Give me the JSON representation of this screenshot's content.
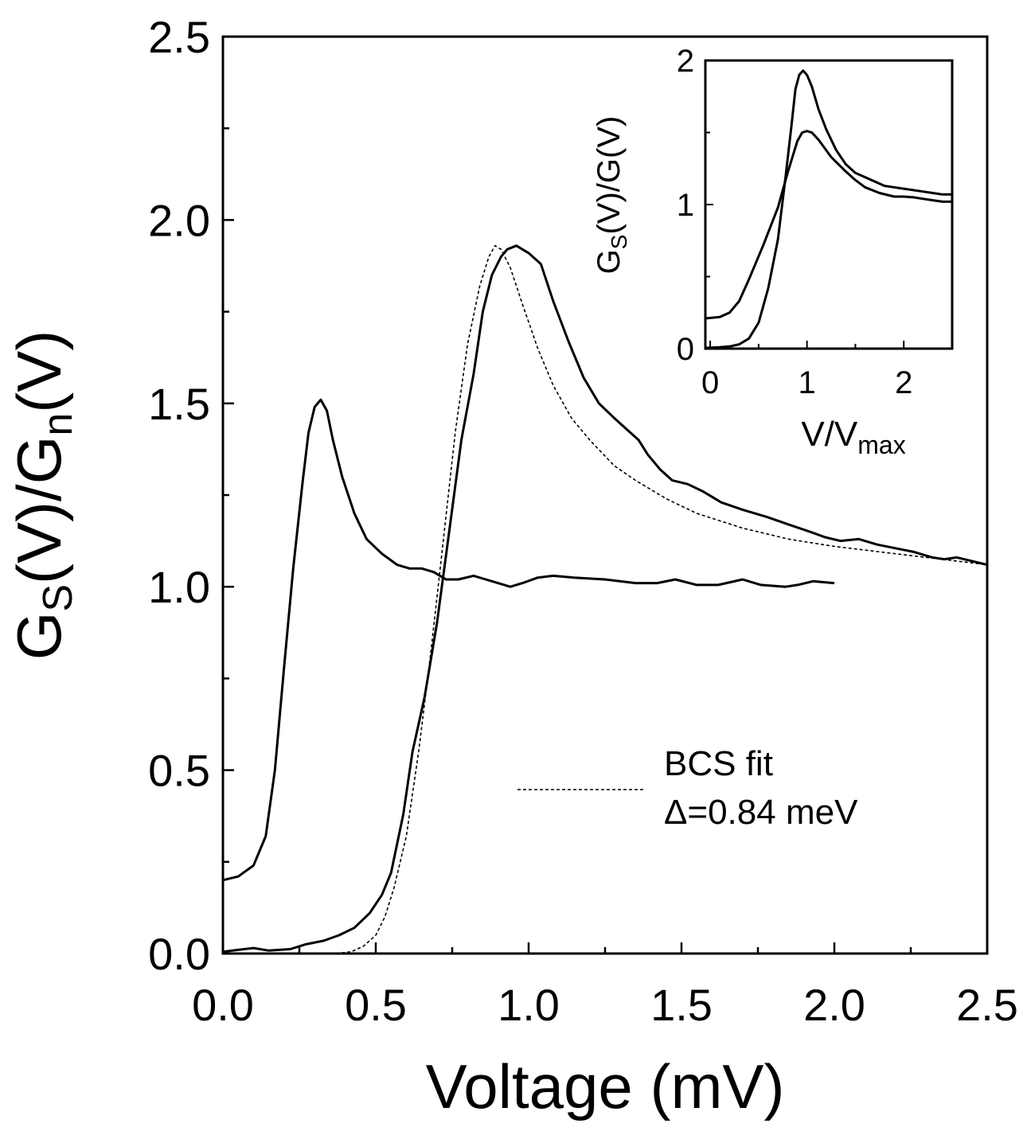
{
  "chart_data": [
    {
      "type": "line",
      "xlabel": "Voltage (mV)",
      "ylabel": {
        "main": "G",
        "sub1": "S",
        "mid": "(V)/G",
        "sub2": "n",
        "end": "(V)"
      },
      "xlim": [
        0,
        2.5
      ],
      "ylim": [
        0,
        2.5
      ],
      "x_ticks": [
        0,
        0.5,
        1.0,
        1.5,
        2.0,
        2.5
      ],
      "x_tick_labels": [
        "0.0",
        "0.5",
        "1.0",
        "1.5",
        "2.0",
        "2.5"
      ],
      "y_ticks": [
        0,
        0.5,
        1.0,
        1.5,
        2.0,
        2.5
      ],
      "y_tick_labels": [
        "0.0",
        "0.5",
        "1.0",
        "1.5",
        "2.0",
        "2.5"
      ],
      "minor_ticks": true,
      "grid": false,
      "legend": {
        "placement": "center-right",
        "entries": [
          {
            "label_line1": "BCS fit",
            "label_line2": "Δ=0.84 meV",
            "style": "dotted"
          }
        ]
      },
      "series": [
        {
          "style": "solid",
          "points": [
            [
              0.0,
              0.2
            ],
            [
              0.05,
              0.21
            ],
            [
              0.1,
              0.24
            ],
            [
              0.14,
              0.32
            ],
            [
              0.17,
              0.5
            ],
            [
              0.2,
              0.78
            ],
            [
              0.23,
              1.05
            ],
            [
              0.26,
              1.28
            ],
            [
              0.28,
              1.42
            ],
            [
              0.3,
              1.49
            ],
            [
              0.32,
              1.51
            ],
            [
              0.34,
              1.48
            ],
            [
              0.36,
              1.4
            ],
            [
              0.39,
              1.3
            ],
            [
              0.43,
              1.2
            ],
            [
              0.47,
              1.13
            ],
            [
              0.52,
              1.09
            ],
            [
              0.57,
              1.06
            ],
            [
              0.61,
              1.05
            ],
            [
              0.65,
              1.05
            ],
            [
              0.69,
              1.04
            ],
            [
              0.73,
              1.02
            ],
            [
              0.77,
              1.02
            ],
            [
              0.82,
              1.03
            ],
            [
              0.86,
              1.02
            ],
            [
              0.9,
              1.01
            ],
            [
              0.94,
              1.0
            ],
            [
              0.98,
              1.01
            ],
            [
              1.03,
              1.025
            ],
            [
              1.08,
              1.03
            ],
            [
              1.15,
              1.025
            ],
            [
              1.25,
              1.02
            ],
            [
              1.35,
              1.01
            ],
            [
              1.42,
              1.01
            ],
            [
              1.48,
              1.02
            ],
            [
              1.55,
              1.005
            ],
            [
              1.62,
              1.005
            ],
            [
              1.7,
              1.02
            ],
            [
              1.76,
              1.005
            ],
            [
              1.84,
              1.0
            ],
            [
              1.88,
              1.005
            ],
            [
              1.93,
              1.015
            ],
            [
              2.0,
              1.01
            ]
          ]
        },
        {
          "style": "solid",
          "points": [
            [
              0.0,
              0.005
            ],
            [
              0.05,
              0.01
            ],
            [
              0.1,
              0.015
            ],
            [
              0.15,
              0.008
            ],
            [
              0.22,
              0.012
            ],
            [
              0.27,
              0.025
            ],
            [
              0.33,
              0.035
            ],
            [
              0.38,
              0.05
            ],
            [
              0.43,
              0.07
            ],
            [
              0.48,
              0.11
            ],
            [
              0.52,
              0.16
            ],
            [
              0.55,
              0.22
            ],
            [
              0.59,
              0.38
            ],
            [
              0.62,
              0.55
            ],
            [
              0.66,
              0.7
            ],
            [
              0.7,
              0.9
            ],
            [
              0.74,
              1.15
            ],
            [
              0.78,
              1.4
            ],
            [
              0.82,
              1.58
            ],
            [
              0.85,
              1.75
            ],
            [
              0.88,
              1.85
            ],
            [
              0.91,
              1.9
            ],
            [
              0.93,
              1.92
            ],
            [
              0.96,
              1.93
            ],
            [
              1.0,
              1.91
            ],
            [
              1.04,
              1.88
            ],
            [
              1.08,
              1.78
            ],
            [
              1.13,
              1.67
            ],
            [
              1.18,
              1.57
            ],
            [
              1.23,
              1.5
            ],
            [
              1.28,
              1.46
            ],
            [
              1.32,
              1.43
            ],
            [
              1.36,
              1.4
            ],
            [
              1.39,
              1.36
            ],
            [
              1.43,
              1.32
            ],
            [
              1.47,
              1.29
            ],
            [
              1.52,
              1.28
            ],
            [
              1.57,
              1.26
            ],
            [
              1.63,
              1.23
            ],
            [
              1.7,
              1.21
            ],
            [
              1.78,
              1.19
            ],
            [
              1.85,
              1.17
            ],
            [
              1.92,
              1.15
            ],
            [
              1.97,
              1.135
            ],
            [
              2.02,
              1.125
            ],
            [
              2.08,
              1.13
            ],
            [
              2.14,
              1.115
            ],
            [
              2.2,
              1.105
            ],
            [
              2.26,
              1.095
            ],
            [
              2.32,
              1.08
            ],
            [
              2.36,
              1.075
            ],
            [
              2.4,
              1.08
            ],
            [
              2.45,
              1.07
            ],
            [
              2.5,
              1.06
            ]
          ]
        },
        {
          "style": "dotted",
          "points": [
            [
              0.37,
              0.0
            ],
            [
              0.42,
              0.005
            ],
            [
              0.46,
              0.02
            ],
            [
              0.5,
              0.05
            ],
            [
              0.53,
              0.1
            ],
            [
              0.56,
              0.18
            ],
            [
              0.6,
              0.32
            ],
            [
              0.64,
              0.55
            ],
            [
              0.68,
              0.82
            ],
            [
              0.72,
              1.12
            ],
            [
              0.76,
              1.42
            ],
            [
              0.8,
              1.66
            ],
            [
              0.84,
              1.82
            ],
            [
              0.87,
              1.9
            ],
            [
              0.89,
              1.93
            ],
            [
              0.91,
              1.92
            ],
            [
              0.94,
              1.87
            ],
            [
              0.98,
              1.77
            ],
            [
              1.03,
              1.65
            ],
            [
              1.08,
              1.55
            ],
            [
              1.14,
              1.46
            ],
            [
              1.2,
              1.4
            ],
            [
              1.28,
              1.33
            ],
            [
              1.35,
              1.29
            ],
            [
              1.45,
              1.24
            ],
            [
              1.55,
              1.2
            ],
            [
              1.7,
              1.16
            ],
            [
              1.85,
              1.13
            ],
            [
              2.0,
              1.11
            ],
            [
              2.15,
              1.095
            ],
            [
              2.3,
              1.08
            ],
            [
              2.45,
              1.065
            ],
            [
              2.5,
              1.06
            ]
          ]
        }
      ]
    },
    {
      "type": "line",
      "xlabel": {
        "main": "V/V",
        "sub": "max"
      },
      "ylabel": {
        "main": "G",
        "sub1": "S",
        "end": "(V)/G(V)"
      },
      "xlim": [
        -0.05,
        2.5
      ],
      "ylim": [
        0,
        2
      ],
      "x_ticks": [
        0,
        1,
        2
      ],
      "x_tick_labels": [
        "0",
        "1",
        "2"
      ],
      "y_ticks": [
        0,
        1,
        2
      ],
      "y_tick_labels": [
        "0",
        "1",
        "2"
      ],
      "minor_ticks": true,
      "grid": false,
      "series": [
        {
          "style": "solid",
          "points": [
            [
              -0.05,
              0.21
            ],
            [
              0.1,
              0.22
            ],
            [
              0.2,
              0.25
            ],
            [
              0.3,
              0.33
            ],
            [
              0.4,
              0.48
            ],
            [
              0.55,
              0.72
            ],
            [
              0.7,
              0.98
            ],
            [
              0.8,
              1.22
            ],
            [
              0.9,
              1.44
            ],
            [
              0.95,
              1.5
            ],
            [
              1.0,
              1.51
            ],
            [
              1.05,
              1.5
            ],
            [
              1.12,
              1.45
            ],
            [
              1.25,
              1.33
            ],
            [
              1.4,
              1.23
            ],
            [
              1.5,
              1.17
            ],
            [
              1.6,
              1.12
            ],
            [
              1.75,
              1.08
            ],
            [
              1.9,
              1.055
            ],
            [
              2.0,
              1.055
            ],
            [
              2.1,
              1.05
            ],
            [
              2.2,
              1.04
            ],
            [
              2.3,
              1.03
            ],
            [
              2.4,
              1.02
            ],
            [
              2.5,
              1.02
            ]
          ]
        },
        {
          "style": "solid",
          "points": [
            [
              -0.05,
              0.005
            ],
            [
              0.1,
              0.01
            ],
            [
              0.2,
              0.015
            ],
            [
              0.3,
              0.03
            ],
            [
              0.4,
              0.07
            ],
            [
              0.5,
              0.18
            ],
            [
              0.6,
              0.42
            ],
            [
              0.7,
              0.76
            ],
            [
              0.78,
              1.2
            ],
            [
              0.84,
              1.55
            ],
            [
              0.88,
              1.8
            ],
            [
              0.92,
              1.9
            ],
            [
              0.96,
              1.93
            ],
            [
              1.0,
              1.9
            ],
            [
              1.05,
              1.82
            ],
            [
              1.12,
              1.66
            ],
            [
              1.2,
              1.52
            ],
            [
              1.3,
              1.38
            ],
            [
              1.4,
              1.28
            ],
            [
              1.5,
              1.22
            ],
            [
              1.6,
              1.19
            ],
            [
              1.7,
              1.16
            ],
            [
              1.8,
              1.13
            ],
            [
              1.9,
              1.12
            ],
            [
              2.0,
              1.11
            ],
            [
              2.1,
              1.1
            ],
            [
              2.2,
              1.09
            ],
            [
              2.3,
              1.08
            ],
            [
              2.4,
              1.07
            ],
            [
              2.5,
              1.07
            ]
          ]
        }
      ]
    }
  ]
}
